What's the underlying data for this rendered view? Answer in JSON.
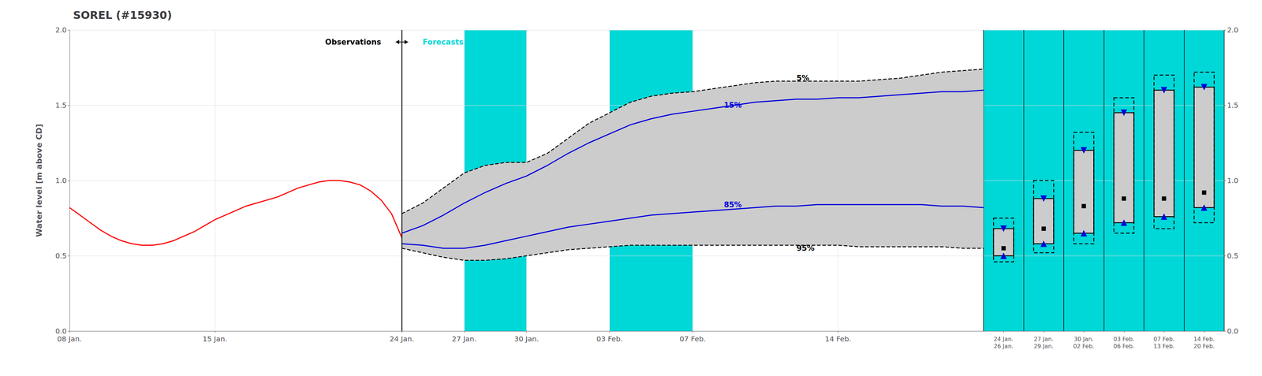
{
  "chart_data": [
    {
      "type": "line",
      "title": "SOREL (#15930)",
      "ylabel": "Water level [m above CD]",
      "xlim": [
        8,
        52
      ],
      "xticks": [
        {
          "value": 8,
          "label": "08 Jan."
        },
        {
          "value": 15,
          "label": "15 Jan."
        },
        {
          "value": 24,
          "label": "24 Jan."
        },
        {
          "value": 27,
          "label": "27 Jan."
        },
        {
          "value": 30,
          "label": "30 Jan."
        },
        {
          "value": 34,
          "label": "03 Feb."
        },
        {
          "value": 38,
          "label": "07 Feb."
        },
        {
          "value": 45,
          "label": "14 Feb."
        }
      ],
      "ylim": [
        0.0,
        2.0
      ],
      "yticks": [
        {
          "value": 0.0,
          "label": "0.0"
        },
        {
          "value": 0.5,
          "label": "0.5"
        },
        {
          "value": 1.0,
          "label": "1.0"
        },
        {
          "value": 1.5,
          "label": "1.5"
        },
        {
          "value": 2.0,
          "label": "2.0"
        }
      ],
      "grid": true,
      "legend": false,
      "series": [
        {
          "name": "Observations",
          "color": "#ff0000",
          "line_style": "solid",
          "x": [
            8,
            8.5,
            9,
            9.5,
            10,
            10.5,
            11,
            11.5,
            12,
            12.5,
            13,
            13.5,
            14,
            14.5,
            15,
            15.5,
            16,
            16.5,
            17,
            17.5,
            18,
            18.5,
            19,
            19.5,
            20,
            20.5,
            21,
            21.5,
            22,
            22.5,
            23,
            23.5,
            24
          ],
          "values": [
            0.82,
            0.77,
            0.72,
            0.67,
            0.63,
            0.6,
            0.58,
            0.57,
            0.57,
            0.58,
            0.6,
            0.63,
            0.66,
            0.7,
            0.74,
            0.77,
            0.8,
            0.83,
            0.85,
            0.87,
            0.89,
            0.92,
            0.95,
            0.97,
            0.99,
            1.0,
            1.0,
            0.99,
            0.97,
            0.93,
            0.87,
            0.78,
            0.62
          ]
        },
        {
          "name": "5%",
          "color": "#000000",
          "line_style": "dashed",
          "x": [
            24,
            25,
            26,
            27,
            28,
            29,
            30,
            31,
            32,
            33,
            34,
            35,
            36,
            37,
            38,
            39,
            40,
            41,
            42,
            43,
            44,
            45,
            46,
            47,
            48,
            49,
            50,
            51,
            52
          ],
          "values": [
            0.78,
            0.85,
            0.95,
            1.05,
            1.1,
            1.12,
            1.12,
            1.18,
            1.28,
            1.38,
            1.45,
            1.52,
            1.56,
            1.58,
            1.59,
            1.61,
            1.63,
            1.65,
            1.66,
            1.66,
            1.66,
            1.66,
            1.66,
            1.67,
            1.68,
            1.7,
            1.72,
            1.73,
            1.74
          ]
        },
        {
          "name": "15%",
          "color": "#0000dd",
          "line_style": "solid",
          "x": [
            24,
            25,
            26,
            27,
            28,
            29,
            30,
            31,
            32,
            33,
            34,
            35,
            36,
            37,
            38,
            39,
            40,
            41,
            42,
            43,
            44,
            45,
            46,
            47,
            48,
            49,
            50,
            51,
            52
          ],
          "values": [
            0.65,
            0.7,
            0.77,
            0.85,
            0.92,
            0.98,
            1.03,
            1.1,
            1.18,
            1.25,
            1.31,
            1.37,
            1.41,
            1.44,
            1.46,
            1.48,
            1.5,
            1.52,
            1.53,
            1.54,
            1.54,
            1.55,
            1.55,
            1.56,
            1.57,
            1.58,
            1.59,
            1.59,
            1.6
          ]
        },
        {
          "name": "85%",
          "color": "#0000dd",
          "line_style": "solid",
          "x": [
            24,
            25,
            26,
            27,
            28,
            29,
            30,
            31,
            32,
            33,
            34,
            35,
            36,
            37,
            38,
            39,
            40,
            41,
            42,
            43,
            44,
            45,
            46,
            47,
            48,
            49,
            50,
            51,
            52
          ],
          "values": [
            0.58,
            0.57,
            0.55,
            0.55,
            0.57,
            0.6,
            0.63,
            0.66,
            0.69,
            0.71,
            0.73,
            0.75,
            0.77,
            0.78,
            0.79,
            0.8,
            0.81,
            0.82,
            0.83,
            0.83,
            0.84,
            0.84,
            0.84,
            0.84,
            0.84,
            0.84,
            0.83,
            0.83,
            0.82
          ]
        },
        {
          "name": "95%",
          "color": "#000000",
          "line_style": "dashed",
          "x": [
            24,
            25,
            26,
            27,
            28,
            29,
            30,
            31,
            32,
            33,
            34,
            35,
            36,
            37,
            38,
            39,
            40,
            41,
            42,
            43,
            44,
            45,
            46,
            47,
            48,
            49,
            50,
            51,
            52
          ],
          "values": [
            0.55,
            0.52,
            0.49,
            0.47,
            0.47,
            0.48,
            0.5,
            0.52,
            0.54,
            0.55,
            0.56,
            0.57,
            0.57,
            0.57,
            0.57,
            0.57,
            0.57,
            0.57,
            0.57,
            0.57,
            0.57,
            0.57,
            0.56,
            0.56,
            0.56,
            0.56,
            0.56,
            0.55,
            0.55
          ]
        }
      ],
      "fill": {
        "between": [
          "5%",
          "95%"
        ],
        "color": "#cccccc"
      },
      "bands": [
        [
          27,
          30
        ],
        [
          34,
          38
        ]
      ],
      "band_color": "#00d8d8",
      "vline": {
        "x": 24,
        "color": "#000000"
      },
      "annotations": [
        {
          "text": "5%",
          "x": 43.0,
          "y": 1.68,
          "color": "#000000",
          "align": "left"
        },
        {
          "text": "15%",
          "x": 39.5,
          "y": 1.5,
          "color": "#0000dd",
          "align": "left"
        },
        {
          "text": "85%",
          "x": 39.5,
          "y": 0.84,
          "color": "#0000dd",
          "align": "left"
        },
        {
          "text": "95%",
          "x": 43.0,
          "y": 0.55,
          "color": "#000000",
          "align": "left"
        },
        {
          "text": "Observations",
          "x": 23,
          "y": 1.92,
          "color": "#000000",
          "align": "right"
        },
        {
          "text": "Forecasts",
          "x": 25,
          "y": 1.92,
          "color": "#00d8d8",
          "align": "left"
        }
      ],
      "arrow": {
        "x": [
          23.7,
          24.3
        ],
        "y": 1.92,
        "color": "#000000"
      }
    },
    {
      "type": "box",
      "categories": [
        "24 Jan.\n26 Jan.",
        "27 Jan.\n29 Jan.",
        "30 Jan.\n02 Feb.",
        "03 Feb.\n06 Feb.",
        "07 Feb.\n13 Feb.",
        "14 Feb.\n20 Feb."
      ],
      "ylim": [
        0.0,
        2.0
      ],
      "yticks": [
        {
          "value": 0.0,
          "label": "0.0"
        },
        {
          "value": 0.5,
          "label": "0.5"
        },
        {
          "value": 1.0,
          "label": "1.0"
        },
        {
          "value": 1.5,
          "label": "1.5"
        },
        {
          "value": 2.0,
          "label": "2.0"
        }
      ],
      "grid": true,
      "legend": false,
      "p5": [
        0.75,
        1.0,
        1.32,
        1.55,
        1.7,
        1.72
      ],
      "p15": [
        0.68,
        0.88,
        1.2,
        1.45,
        1.6,
        1.62
      ],
      "p50": [
        0.55,
        0.68,
        0.83,
        0.88,
        0.88,
        0.92
      ],
      "p85": [
        0.5,
        0.58,
        0.65,
        0.72,
        0.76,
        0.82
      ],
      "p95": [
        0.46,
        0.52,
        0.58,
        0.65,
        0.68,
        0.72
      ],
      "shaded": [
        true,
        true,
        true,
        true,
        true,
        true
      ],
      "band_color": "#00d8d8",
      "fill_color": "#cccccc",
      "color": "#000000",
      "marker_color": "#0000dd"
    }
  ]
}
